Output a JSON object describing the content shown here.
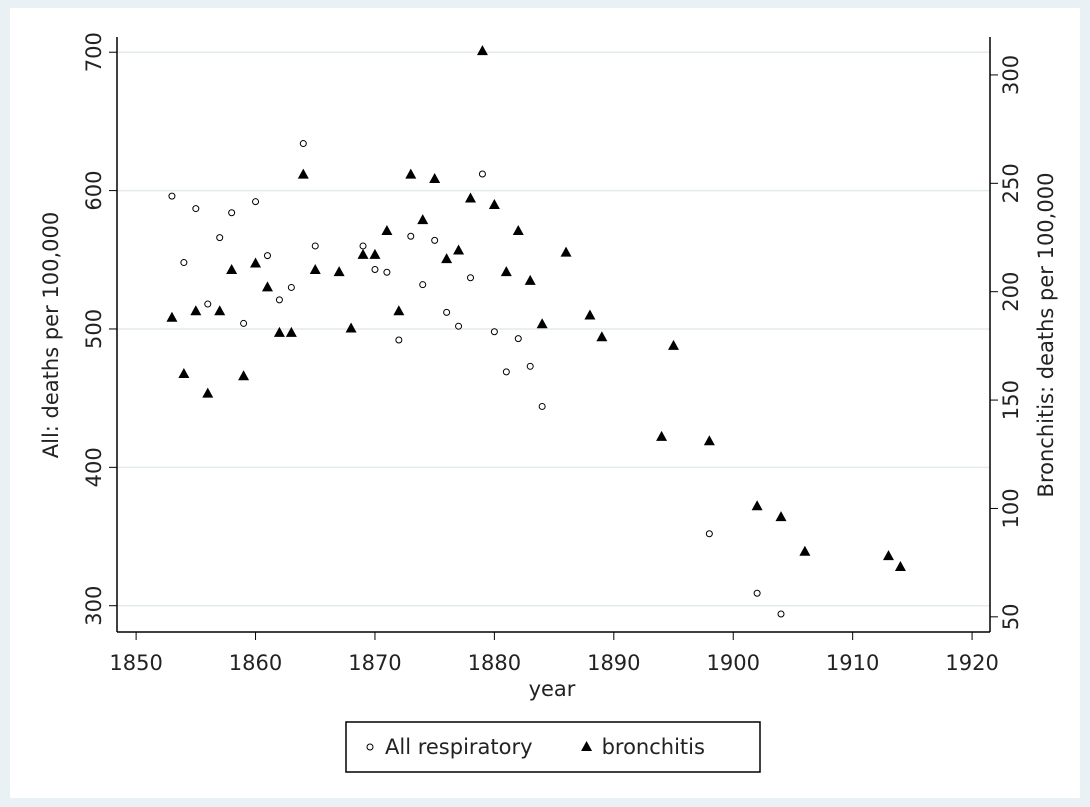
{
  "chart_data": {
    "type": "scatter",
    "xlabel": "year",
    "ylabel": "All:  deaths per 100,000",
    "y2label": "Bronchitis:  deaths per 100,000",
    "xlim": [
      1848.4,
      1921.5
    ],
    "xticks": [
      1850,
      1860,
      1870,
      1880,
      1890,
      1900,
      1910,
      1920
    ],
    "ylim": [
      281,
      711
    ],
    "yticks": [
      300,
      400,
      500,
      600,
      700
    ],
    "y2lim": [
      43,
      317.5
    ],
    "y2ticks": [
      50,
      100,
      150,
      200,
      250,
      300
    ],
    "grid": true,
    "legend": "bottom",
    "series": [
      {
        "name": "All respiratory",
        "color": "#000000",
        "marker": "circle",
        "x": [
          1853,
          1854,
          1855,
          1856,
          1857,
          1858,
          1859,
          1860,
          1861,
          1862,
          1863,
          1864,
          1865,
          1869,
          1870,
          1871,
          1872,
          1873,
          1874,
          1875,
          1876,
          1877,
          1878,
          1879,
          1880,
          1881,
          1882,
          1883,
          1884,
          1898,
          1902,
          1904
        ],
        "values": [
          596,
          548,
          587,
          518,
          566,
          584,
          504,
          592,
          553,
          521,
          530,
          634,
          560,
          560,
          543,
          541,
          492,
          567,
          532,
          564,
          512,
          502,
          537,
          612,
          498,
          469,
          493,
          473,
          444,
          352,
          309,
          294
        ]
      },
      {
        "name": "bronchitis",
        "color": "#000000",
        "marker": "triangle",
        "axis": "y2",
        "x": [
          1853,
          1854,
          1855,
          1856,
          1857,
          1858,
          1859,
          1860,
          1861,
          1862,
          1863,
          1864,
          1865,
          1867,
          1868,
          1869,
          1870,
          1871,
          1872,
          1873,
          1874,
          1875,
          1876,
          1877,
          1878,
          1879,
          1880,
          1881,
          1882,
          1883,
          1884,
          1886,
          1888,
          1889,
          1894,
          1895,
          1898,
          1902,
          1904,
          1906,
          1913,
          1914
        ],
        "values": [
          188,
          162,
          191,
          153,
          191,
          210,
          161,
          213,
          202,
          181,
          181,
          254,
          210,
          209,
          183,
          217,
          217,
          228,
          191,
          254,
          233,
          252,
          215,
          219,
          243,
          311,
          240,
          209,
          228,
          205,
          185,
          218,
          189,
          179,
          133,
          175,
          131,
          101,
          96,
          80,
          78,
          73
        ]
      }
    ]
  }
}
